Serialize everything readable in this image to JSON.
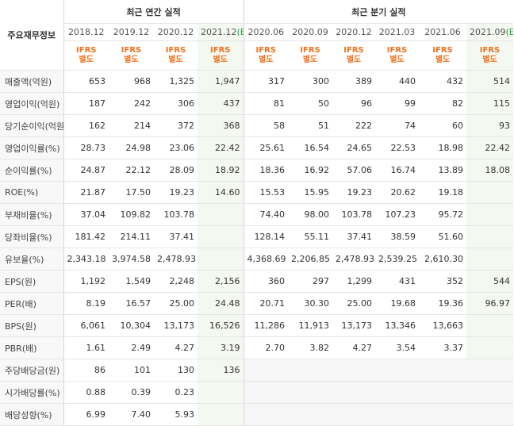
{
  "table": {
    "row_header_label": "주요재무정보",
    "annual_group_title": "최근 연간 실적",
    "quarter_group_title": "최근 분기 실적",
    "annual_periods": [
      "2018.12",
      "2019.12",
      "2020.12",
      "2021.12"
    ],
    "annual_estimate_mark": "(E)",
    "quarter_periods": [
      "2020.06",
      "2020.09",
      "2020.12",
      "2021.03",
      "2021.06",
      "2021.09"
    ],
    "quarter_estimate_mark": "(E)",
    "ifrs_line1": "IFRS",
    "ifrs_line2": "별도",
    "rows": [
      {
        "label": "매출액(억원)",
        "annual": [
          "653",
          "968",
          "1,325",
          "1,947"
        ],
        "quarter": [
          "317",
          "300",
          "389",
          "440",
          "432",
          "514"
        ]
      },
      {
        "label": "영업이익(억원)",
        "annual": [
          "187",
          "242",
          "306",
          "437"
        ],
        "quarter": [
          "81",
          "50",
          "96",
          "99",
          "82",
          "115"
        ]
      },
      {
        "label": "당기순이익(억원)",
        "annual": [
          "162",
          "214",
          "372",
          "368"
        ],
        "quarter": [
          "58",
          "51",
          "222",
          "74",
          "60",
          "93"
        ]
      },
      {
        "label": "영업이익률(%)",
        "annual": [
          "28.73",
          "24.98",
          "23.06",
          "22.42"
        ],
        "quarter": [
          "25.61",
          "16.54",
          "24.65",
          "22.53",
          "18.98",
          "22.42"
        ]
      },
      {
        "label": "순이익률(%)",
        "annual": [
          "24.87",
          "22.12",
          "28.09",
          "18.92"
        ],
        "quarter": [
          "18.36",
          "16.92",
          "57.06",
          "16.74",
          "13.89",
          "18.08"
        ]
      },
      {
        "label": "ROE(%)",
        "annual": [
          "21.87",
          "17.50",
          "19.23",
          "14.60"
        ],
        "quarter": [
          "15.53",
          "15.95",
          "19.23",
          "20.62",
          "19.18",
          ""
        ]
      },
      {
        "label": "부채비율(%)",
        "annual": [
          "37.04",
          "109.82",
          "103.78",
          ""
        ],
        "quarter": [
          "74.40",
          "98.00",
          "103.78",
          "107.23",
          "95.72",
          ""
        ]
      },
      {
        "label": "당좌비율(%)",
        "annual": [
          "181.42",
          "214.11",
          "37.41",
          ""
        ],
        "quarter": [
          "128.14",
          "55.11",
          "37.41",
          "38.59",
          "51.60",
          ""
        ]
      },
      {
        "label": "유보율(%)",
        "annual": [
          "2,343.18",
          "3,974.58",
          "2,478.93",
          ""
        ],
        "quarter": [
          "4,368.69",
          "2,206.85",
          "2,478.93",
          "2,539.25",
          "2,610.30",
          ""
        ]
      },
      {
        "label": "EPS(원)",
        "annual": [
          "1,192",
          "1,549",
          "2,248",
          "2,156"
        ],
        "quarter": [
          "360",
          "297",
          "1,299",
          "431",
          "352",
          "544"
        ]
      },
      {
        "label": "PER(배)",
        "annual": [
          "8.19",
          "16.57",
          "25.00",
          "24.48"
        ],
        "quarter": [
          "20.71",
          "30.30",
          "25.00",
          "19.68",
          "19.36",
          "96.97"
        ]
      },
      {
        "label": "BPS(원)",
        "annual": [
          "6,061",
          "10,304",
          "13,173",
          "16,526"
        ],
        "quarter": [
          "11,286",
          "11,913",
          "13,173",
          "13,346",
          "13,663",
          ""
        ]
      },
      {
        "label": "PBR(배)",
        "annual": [
          "1.61",
          "2.49",
          "4.27",
          "3.19"
        ],
        "quarter": [
          "2.70",
          "3.82",
          "4.27",
          "3.54",
          "3.37",
          ""
        ]
      },
      {
        "label": "주당배당금(원)",
        "annual": [
          "86",
          "101",
          "130",
          "136"
        ],
        "quarter": [
          "",
          "",
          "",
          "",
          "",
          ""
        ]
      },
      {
        "label": "시가배당률(%)",
        "annual": [
          "0.88",
          "0.39",
          "0.23",
          ""
        ],
        "quarter": [
          "",
          "",
          "",
          "",
          "",
          ""
        ]
      },
      {
        "label": "배당성향(%)",
        "annual": [
          "6.99",
          "7.40",
          "5.93",
          ""
        ],
        "quarter": [
          "",
          "",
          "",
          "",
          "",
          ""
        ]
      }
    ]
  }
}
